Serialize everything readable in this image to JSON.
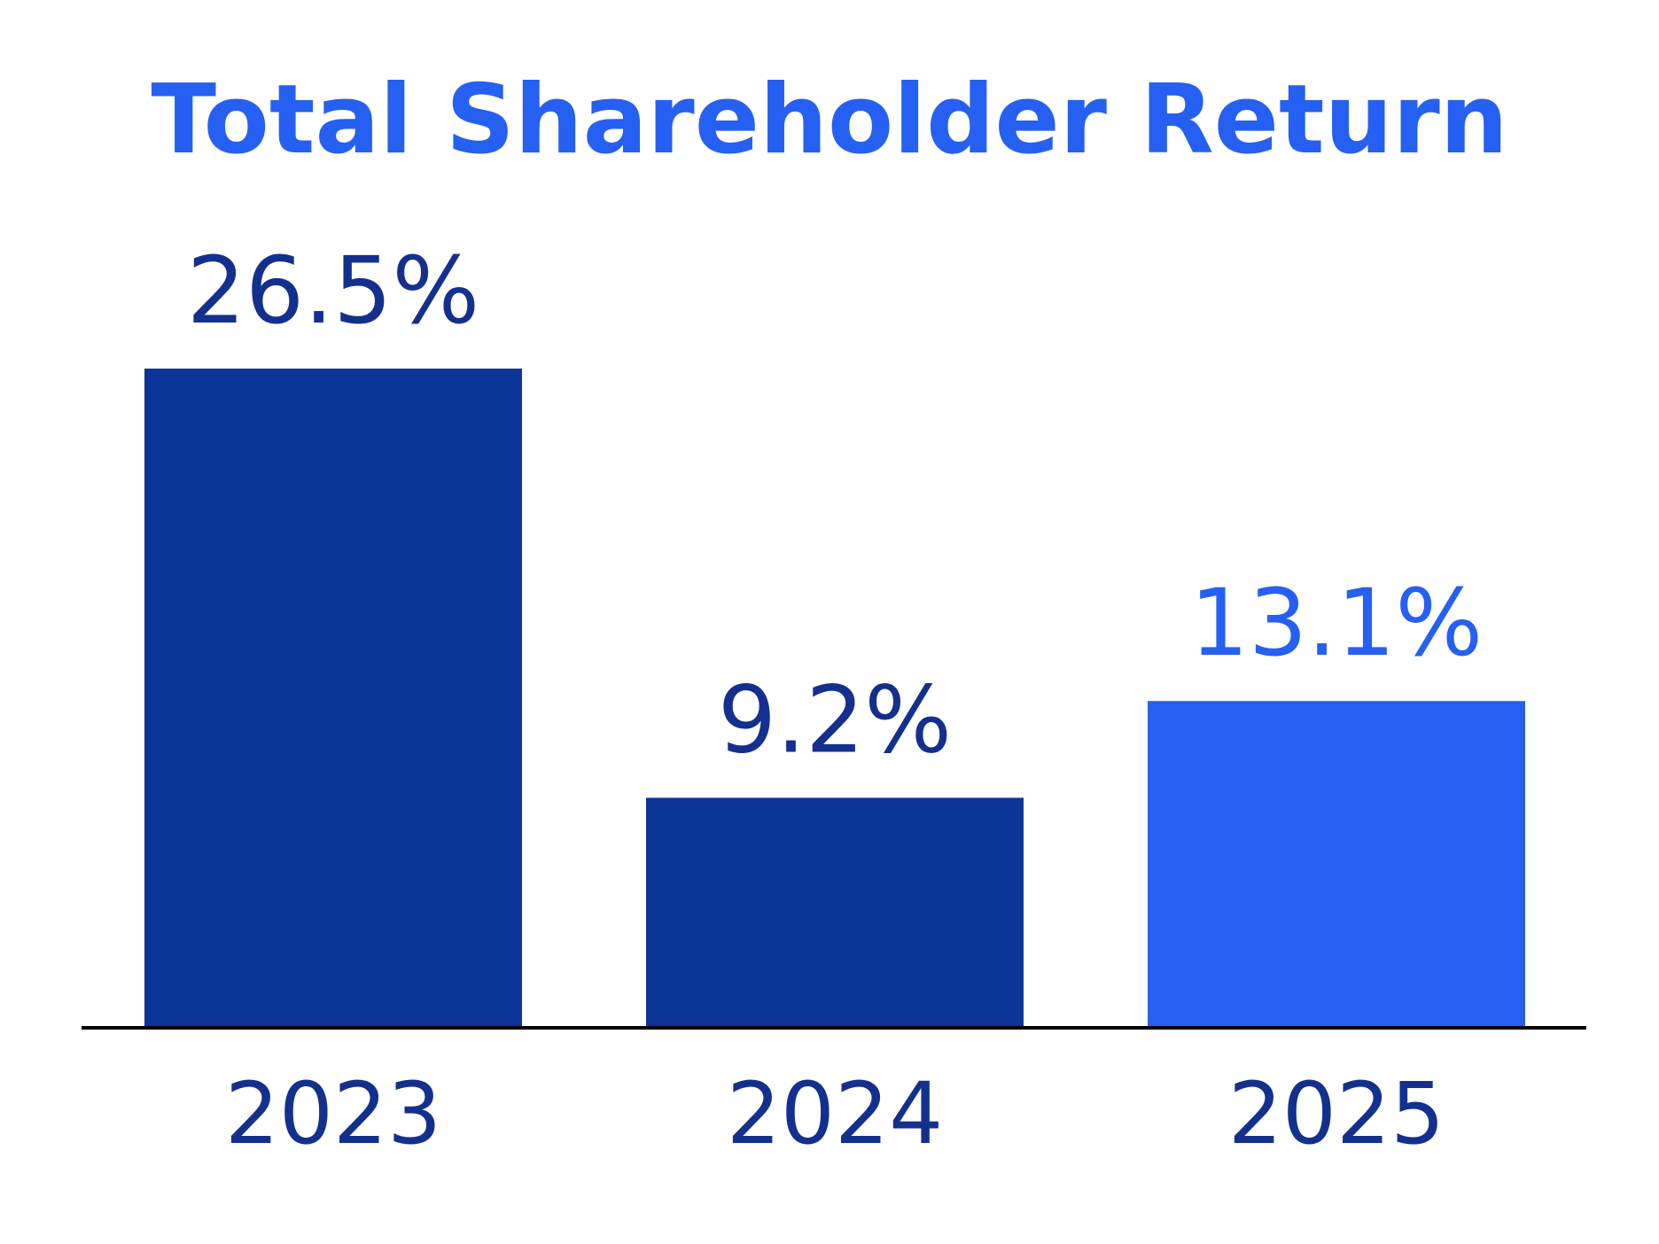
{
  "chart_data": {
    "type": "bar",
    "title": "Total Shareholder Return",
    "categories": [
      "2023",
      "2024",
      "2025"
    ],
    "values": [
      26.5,
      9.2,
      13.1
    ],
    "value_labels": [
      "26.5%",
      "9.2%",
      "13.1%"
    ],
    "xlabel": "",
    "ylabel": "",
    "ylim": [
      0,
      26.5
    ],
    "grid": false,
    "legend": "none",
    "bar_colors": [
      "#0a3596",
      "#0a3596",
      "#2660f2"
    ],
    "label_colors": [
      "#14308f",
      "#14308f",
      "#2660f2"
    ],
    "title_color": "#2660f2",
    "tick_color": "#14308f",
    "axis_color": "#000000"
  }
}
